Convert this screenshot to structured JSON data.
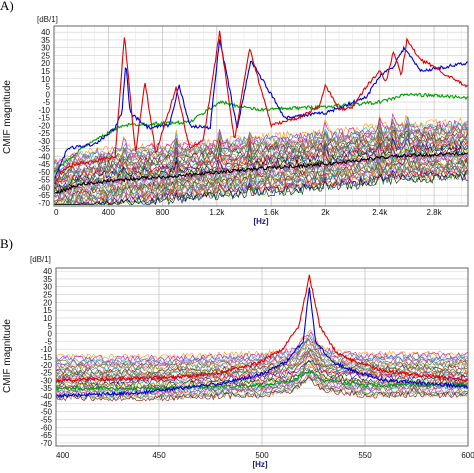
{
  "chart_data": [
    {
      "type": "line",
      "panel_label": "A)",
      "unit_label": "[dB/1]",
      "xlabel": "[Hz]",
      "ylabel": "CMIF magnitude",
      "xlim": [
        0,
        3050
      ],
      "ylim": [
        -72,
        44
      ],
      "x_ticks": [
        0,
        400,
        800,
        1200,
        1600,
        2000,
        2400,
        2800
      ],
      "x_tick_labels": [
        "0",
        "400",
        "800",
        "1.2k",
        "1.6k",
        "2k",
        "2.4k",
        "2.8k"
      ],
      "y_ticks": [
        40,
        35,
        30,
        25,
        20,
        15,
        10,
        5,
        0,
        -5,
        -10,
        -15,
        -20,
        -25,
        -30,
        -35,
        -40,
        -45,
        -50,
        -55,
        -60,
        -65,
        -70
      ],
      "grid": true,
      "legend": "none",
      "series_count": 40,
      "series": [
        {
          "color": "#e00000",
          "x": [
            0,
            50,
            150,
            300,
            450,
            520,
            600,
            670,
            750,
            900,
            1000,
            1100,
            1220,
            1330,
            1440,
            1600,
            1800,
            1950,
            2000,
            2100,
            2200,
            2300,
            2400,
            2450,
            2500,
            2560,
            2600,
            2700,
            2800,
            2900,
            3040
          ],
          "values": [
            -58,
            -50,
            -45,
            -43,
            -40,
            38,
            -38,
            8,
            -38,
            4,
            -35,
            -30,
            40,
            -30,
            30,
            -20,
            -15,
            -8,
            6,
            -10,
            -8,
            5,
            15,
            8,
            28,
            12,
            35,
            22,
            18,
            12,
            5
          ]
        },
        {
          "color": "#0000d0",
          "x": [
            0,
            100,
            300,
            450,
            500,
            530,
            560,
            700,
            850,
            920,
            1000,
            1150,
            1220,
            1350,
            1450,
            1700,
            2000,
            2300,
            2400,
            2500,
            2580,
            2700,
            3040
          ],
          "values": [
            -55,
            -35,
            -32,
            -22,
            -12,
            20,
            -12,
            -22,
            -20,
            6,
            -20,
            -22,
            36,
            -22,
            22,
            -15,
            -12,
            -2,
            12,
            18,
            30,
            15,
            20
          ]
        },
        {
          "color": "#00a000",
          "x": [
            0,
            200,
            500,
            1000,
            1220,
            1500,
            2000,
            2400,
            2600,
            3040
          ],
          "values": [
            -50,
            -35,
            -20,
            -18,
            -5,
            -10,
            -8,
            -5,
            0,
            -2
          ]
        },
        {
          "color": "#000000",
          "x": [
            0,
            200,
            500,
            1000,
            1500,
            2000,
            2500,
            3040
          ],
          "values": [
            -64,
            -58,
            -55,
            -52,
            -48,
            -45,
            -40,
            -38
          ]
        }
      ]
    },
    {
      "type": "line",
      "panel_label": "B)",
      "unit_label": "[dB/1]",
      "xlabel": "[Hz]",
      "ylabel": "CMIF magnitude",
      "xlim": [
        400,
        600
      ],
      "ylim": [
        -72,
        42
      ],
      "x_ticks": [
        400,
        450,
        500,
        550,
        600
      ],
      "x_tick_labels": [
        "400",
        "450",
        "500",
        "550",
        "600"
      ],
      "y_ticks": [
        40,
        35,
        30,
        25,
        20,
        15,
        10,
        5,
        0,
        -5,
        -10,
        -15,
        -20,
        -25,
        -30,
        -35,
        -40,
        -45,
        -50,
        -55,
        -60,
        -65,
        -70
      ],
      "grid": true,
      "legend": "none",
      "series_count": 30,
      "series": [
        {
          "color": "#e00000",
          "x": [
            400,
            430,
            460,
            480,
            500,
            510,
            518,
            523,
            528,
            536,
            545,
            560,
            580,
            600
          ],
          "values": [
            -30,
            -29,
            -28,
            -25,
            -18,
            -10,
            5,
            37,
            5,
            -12,
            -18,
            -24,
            -27,
            -30
          ]
        },
        {
          "color": "#0000d0",
          "x": [
            400,
            440,
            480,
            500,
            512,
            520,
            523,
            526,
            534,
            545,
            560,
            600
          ],
          "values": [
            -40,
            -38,
            -32,
            -26,
            -18,
            -5,
            30,
            -5,
            -18,
            -24,
            -30,
            -34
          ]
        },
        {
          "color": "#00a000",
          "x": [
            400,
            450,
            500,
            515,
            523,
            530,
            550,
            600
          ],
          "values": [
            -35,
            -35,
            -33,
            -30,
            -24,
            -30,
            -33,
            -33
          ]
        }
      ]
    }
  ]
}
